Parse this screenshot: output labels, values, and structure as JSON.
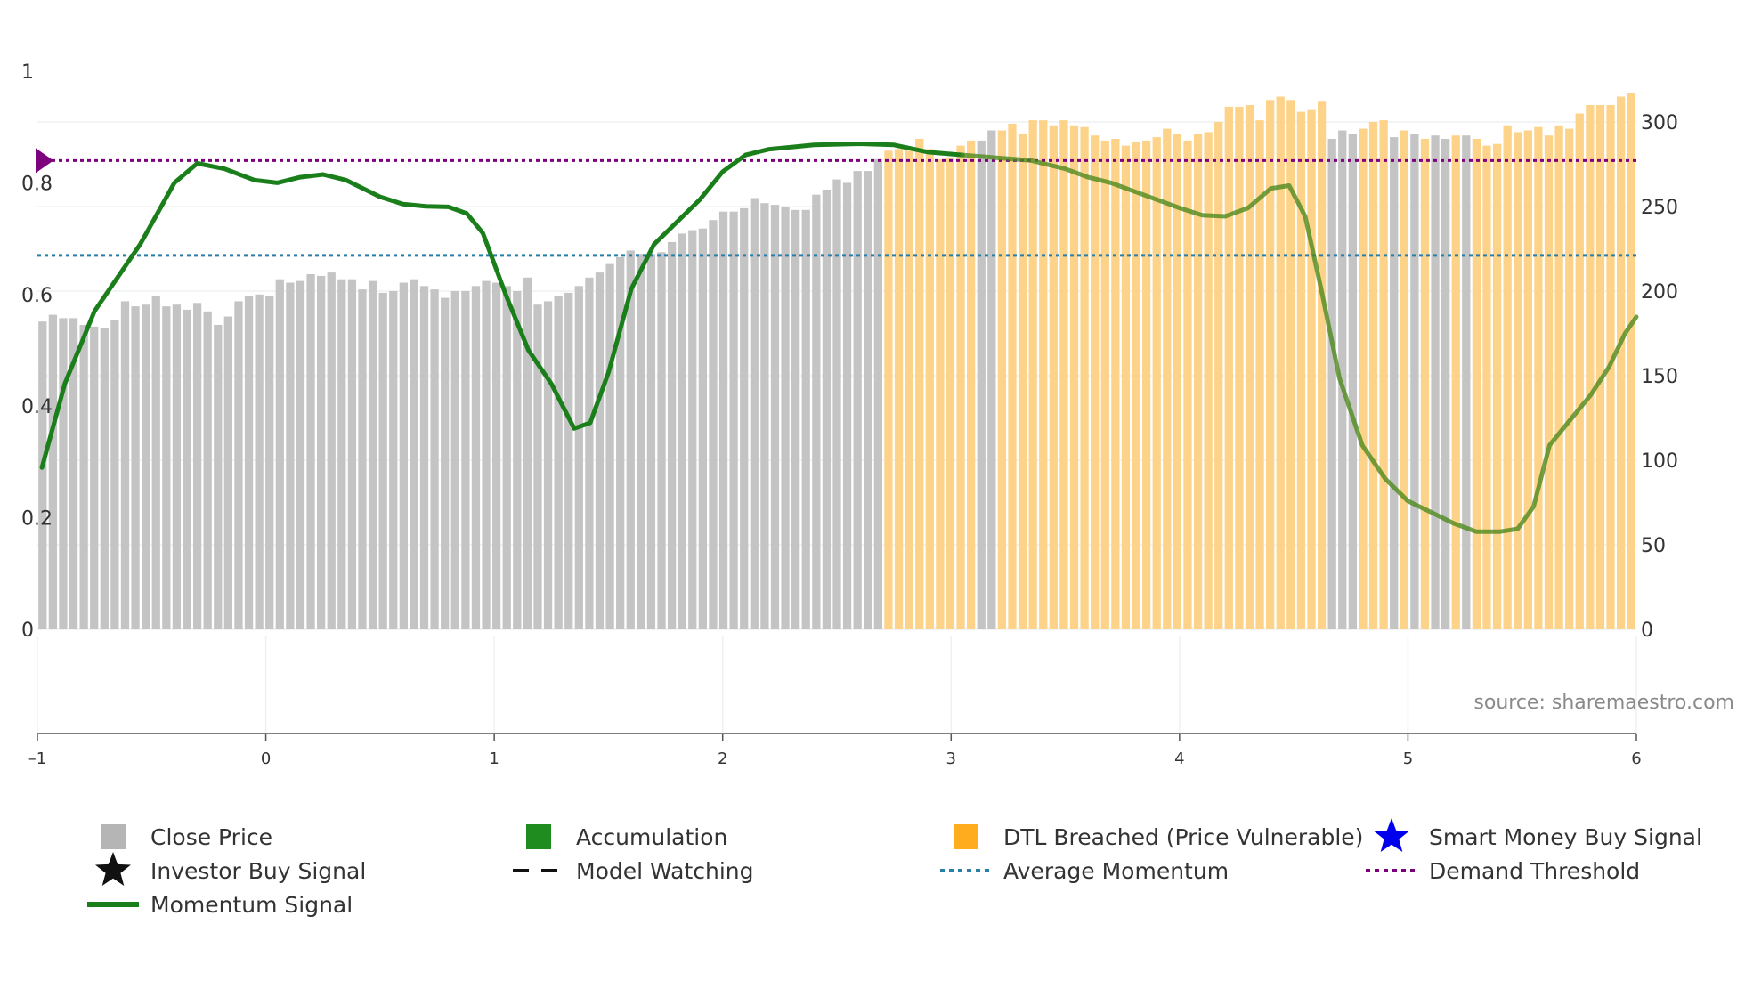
{
  "chart_data": {
    "type": "bar+line",
    "source": "source: sharemaestro.com",
    "left_axis": {
      "range": [
        0,
        1
      ],
      "ticks": [
        "0",
        "0.2",
        "0.4",
        "0.6",
        "0.8",
        "1"
      ]
    },
    "right_axis": {
      "range": [
        0,
        330
      ],
      "ticks": [
        "0",
        "50",
        "100",
        "150",
        "200",
        "250",
        "300"
      ]
    },
    "x_axis": {
      "range": [
        -1,
        6
      ],
      "ticks": [
        "–1",
        "0",
        "1",
        "2",
        "3",
        "4",
        "5",
        "6"
      ]
    },
    "bar_x_start": -1,
    "bar_x_end": 6,
    "bars_close_price": [
      182,
      186,
      184,
      184,
      180,
      179,
      178,
      183,
      194,
      191,
      192,
      197,
      191,
      192,
      189,
      193,
      188,
      180,
      185,
      194,
      197,
      198,
      197,
      207,
      205,
      206,
      210,
      209,
      211,
      207,
      207,
      201,
      206,
      199,
      200,
      205,
      207,
      203,
      201,
      196,
      200,
      200,
      203,
      206,
      205,
      203,
      200,
      208,
      192,
      194,
      197,
      199,
      203,
      208,
      211,
      216,
      220,
      224,
      222,
      222,
      223,
      229,
      234,
      236,
      237,
      242,
      247,
      247,
      249,
      255,
      252,
      251,
      250,
      248,
      248,
      257,
      260,
      266,
      264,
      271,
      271,
      278,
      283,
      284,
      283,
      290,
      284,
      278,
      279,
      286,
      289,
      289,
      295,
      295,
      299,
      293,
      301,
      301,
      298,
      301,
      298,
      297,
      292,
      289,
      290,
      286,
      288,
      289,
      291,
      296,
      293,
      289,
      293,
      294,
      300,
      309,
      309,
      310,
      301,
      313,
      315,
      313,
      306,
      307,
      312,
      290,
      295,
      293,
      296,
      300,
      301,
      291,
      295,
      293,
      290,
      292,
      290,
      292,
      292,
      290,
      286,
      287,
      298,
      294,
      295,
      297,
      292,
      298,
      296,
      305,
      310,
      310,
      310,
      315,
      317
    ],
    "bars_category": [
      "c",
      "c",
      "c",
      "c",
      "c",
      "c",
      "c",
      "c",
      "c",
      "c",
      "c",
      "c",
      "c",
      "c",
      "c",
      "c",
      "c",
      "c",
      "c",
      "c",
      "c",
      "c",
      "c",
      "c",
      "c",
      "c",
      "c",
      "c",
      "c",
      "c",
      "c",
      "c",
      "c",
      "c",
      "c",
      "c",
      "c",
      "c",
      "c",
      "c",
      "c",
      "c",
      "c",
      "c",
      "c",
      "c",
      "c",
      "c",
      "c",
      "c",
      "c",
      "c",
      "c",
      "c",
      "c",
      "c",
      "c",
      "c",
      "c",
      "c",
      "c",
      "c",
      "c",
      "c",
      "c",
      "c",
      "c",
      "c",
      "c",
      "c",
      "c",
      "c",
      "c",
      "c",
      "c",
      "c",
      "c",
      "c",
      "c",
      "c",
      "c",
      "c",
      "d",
      "d",
      "d",
      "d",
      "d",
      "d",
      "d",
      "d",
      "d",
      "c",
      "c",
      "d",
      "d",
      "d",
      "d",
      "d",
      "d",
      "d",
      "d",
      "d",
      "d",
      "d",
      "d",
      "d",
      "d",
      "d",
      "d",
      "d",
      "d",
      "d",
      "d",
      "d",
      "d",
      "d",
      "d",
      "d",
      "d",
      "d",
      "d",
      "d",
      "d",
      "d",
      "d",
      "c",
      "c",
      "c",
      "d",
      "d",
      "d",
      "c",
      "d",
      "c",
      "d",
      "c",
      "c",
      "d",
      "c",
      "d",
      "d",
      "d",
      "d",
      "d",
      "d",
      "d",
      "d",
      "d",
      "d",
      "d",
      "d",
      "d",
      "d",
      "d",
      "d"
    ],
    "bar_colors": {
      "close_price": "#c4c4c4",
      "dtl_breached": "#fdd389"
    },
    "momentum_signal": [
      [
        -0.98,
        0.29
      ],
      [
        -0.88,
        0.44
      ],
      [
        -0.75,
        0.57
      ],
      [
        -0.55,
        0.69
      ],
      [
        -0.4,
        0.8
      ],
      [
        -0.3,
        0.835
      ],
      [
        -0.18,
        0.825
      ],
      [
        -0.05,
        0.805
      ],
      [
        0.05,
        0.8
      ],
      [
        0.15,
        0.81
      ],
      [
        0.25,
        0.815
      ],
      [
        0.35,
        0.805
      ],
      [
        0.5,
        0.775
      ],
      [
        0.6,
        0.762
      ],
      [
        0.7,
        0.758
      ],
      [
        0.8,
        0.757
      ],
      [
        0.88,
        0.745
      ],
      [
        0.95,
        0.71
      ],
      [
        1.05,
        0.6
      ],
      [
        1.15,
        0.5
      ],
      [
        1.25,
        0.44
      ],
      [
        1.35,
        0.36
      ],
      [
        1.42,
        0.37
      ],
      [
        1.5,
        0.46
      ],
      [
        1.6,
        0.61
      ],
      [
        1.7,
        0.69
      ],
      [
        1.8,
        0.73
      ],
      [
        1.9,
        0.77
      ],
      [
        2.0,
        0.82
      ],
      [
        2.1,
        0.85
      ],
      [
        2.2,
        0.86
      ],
      [
        2.4,
        0.868
      ],
      [
        2.6,
        0.87
      ],
      [
        2.75,
        0.868
      ],
      [
        2.9,
        0.855
      ],
      [
        3.05,
        0.85
      ],
      [
        3.2,
        0.845
      ],
      [
        3.35,
        0.84
      ],
      [
        3.5,
        0.825
      ],
      [
        3.6,
        0.81
      ],
      [
        3.7,
        0.8
      ],
      [
        3.8,
        0.785
      ],
      [
        3.9,
        0.77
      ],
      [
        4.0,
        0.755
      ],
      [
        4.1,
        0.742
      ],
      [
        4.2,
        0.74
      ],
      [
        4.3,
        0.755
      ],
      [
        4.4,
        0.79
      ],
      [
        4.48,
        0.795
      ],
      [
        4.55,
        0.74
      ],
      [
        4.62,
        0.61
      ],
      [
        4.7,
        0.45
      ],
      [
        4.8,
        0.33
      ],
      [
        4.9,
        0.27
      ],
      [
        5.0,
        0.23
      ],
      [
        5.1,
        0.21
      ],
      [
        5.2,
        0.19
      ],
      [
        5.3,
        0.175
      ],
      [
        5.4,
        0.175
      ],
      [
        5.48,
        0.18
      ],
      [
        5.55,
        0.22
      ],
      [
        5.62,
        0.33
      ],
      [
        5.7,
        0.37
      ],
      [
        5.8,
        0.42
      ],
      [
        5.88,
        0.47
      ],
      [
        5.95,
        0.53
      ],
      [
        6.0,
        0.56
      ]
    ],
    "momentum_solid_until": 3.05,
    "demand_threshold": 0.84,
    "average_momentum": 0.67,
    "colors": {
      "momentum": "#1a7f1a",
      "demand_threshold": "#7d007d",
      "average_momentum": "#2a7fa8",
      "accumulation": "#1e8c1e",
      "dtl": "#ffad1f",
      "smart_money": "#0000ee",
      "investor": "#111111"
    },
    "legend": [
      {
        "icon": "square",
        "color": "#b5b5b5",
        "label": "Close Price"
      },
      {
        "icon": "square",
        "color": "#1e8c1e",
        "label": "Accumulation"
      },
      {
        "icon": "square",
        "color": "#ffad1f",
        "label": "DTL Breached (Price Vulnerable)"
      },
      {
        "icon": "star",
        "color": "#0000ee",
        "label": "Smart Money Buy Signal"
      },
      {
        "icon": "star",
        "color": "#111111",
        "label": "Investor Buy Signal"
      },
      {
        "icon": "dash",
        "color": "#111111",
        "label": "Model Watching"
      },
      {
        "icon": "dot",
        "color": "#2a7fa8",
        "label": "Average Momentum"
      },
      {
        "icon": "dot",
        "color": "#7d007d",
        "label": "Demand Threshold"
      },
      {
        "icon": "line",
        "color": "#1a7f1a",
        "label": "Momentum Signal"
      }
    ]
  }
}
